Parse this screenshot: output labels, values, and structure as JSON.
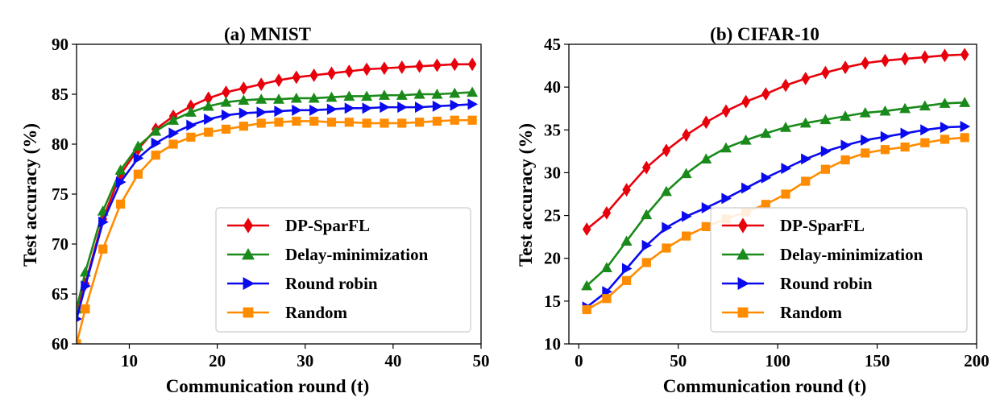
{
  "chart_data": [
    {
      "type": "line",
      "id": "mnist",
      "title": "(a) MNIST",
      "xlabel": "Communication round (t)",
      "ylabel": "Test accuracy (%)",
      "xlim": [
        4,
        50
      ],
      "ylim": [
        60,
        90
      ],
      "xticks": [
        10,
        20,
        30,
        40,
        50
      ],
      "yticks": [
        60,
        65,
        70,
        75,
        80,
        85,
        90
      ],
      "grid": false,
      "legend_position": "lower-right",
      "series": [
        {
          "name": "DP-SparFL",
          "color": "#e8000b",
          "marker": "diamond",
          "x": [
            4,
            5,
            7,
            9,
            11,
            13,
            15,
            17,
            19,
            21,
            23,
            25,
            27,
            29,
            31,
            33,
            35,
            37,
            39,
            41,
            43,
            45,
            47,
            49
          ],
          "y": [
            63.5,
            66.0,
            72.5,
            77.0,
            79.5,
            81.5,
            82.8,
            83.8,
            84.6,
            85.2,
            85.6,
            86.0,
            86.4,
            86.7,
            86.9,
            87.1,
            87.3,
            87.5,
            87.6,
            87.7,
            87.8,
            87.9,
            88.0,
            88.0
          ]
        },
        {
          "name": "Delay-minimization",
          "color": "#1a8a1a",
          "marker": "triangle-up",
          "x": [
            4,
            5,
            7,
            9,
            11,
            13,
            15,
            17,
            19,
            21,
            23,
            25,
            27,
            29,
            31,
            33,
            35,
            37,
            39,
            41,
            43,
            45,
            47,
            49
          ],
          "y": [
            63.5,
            67.2,
            73.3,
            77.4,
            79.8,
            81.3,
            82.4,
            83.2,
            83.8,
            84.2,
            84.4,
            84.5,
            84.5,
            84.6,
            84.6,
            84.7,
            84.8,
            84.8,
            84.9,
            84.9,
            85.0,
            85.0,
            85.1,
            85.2
          ]
        },
        {
          "name": "Round robin",
          "color": "#0a0aee",
          "marker": "triangle-right",
          "x": [
            4,
            5,
            7,
            9,
            11,
            13,
            15,
            17,
            19,
            21,
            23,
            25,
            27,
            29,
            31,
            33,
            35,
            37,
            39,
            41,
            43,
            45,
            47,
            49
          ],
          "y": [
            62.5,
            65.8,
            72.2,
            76.2,
            78.6,
            80.1,
            81.1,
            81.9,
            82.5,
            82.9,
            83.1,
            83.2,
            83.3,
            83.4,
            83.4,
            83.5,
            83.6,
            83.6,
            83.7,
            83.7,
            83.7,
            83.8,
            83.9,
            84.0
          ]
        },
        {
          "name": "Random",
          "color": "#ff8c00",
          "marker": "square",
          "x": [
            4,
            5,
            7,
            9,
            11,
            13,
            15,
            17,
            19,
            21,
            23,
            25,
            27,
            29,
            31,
            33,
            35,
            37,
            39,
            41,
            43,
            45,
            47,
            49
          ],
          "y": [
            60.0,
            63.5,
            69.5,
            74.0,
            77.0,
            78.9,
            80.0,
            80.7,
            81.2,
            81.5,
            81.8,
            82.1,
            82.2,
            82.3,
            82.3,
            82.2,
            82.2,
            82.1,
            82.1,
            82.1,
            82.2,
            82.3,
            82.4,
            82.4
          ]
        }
      ]
    },
    {
      "type": "line",
      "id": "cifar",
      "title": "(b) CIFAR-10",
      "xlabel": "Communication round (t)",
      "ylabel": "Test accuracy (%)",
      "xlim": [
        -5,
        200
      ],
      "ylim": [
        10,
        45
      ],
      "xticks": [
        0,
        50,
        100,
        150,
        200
      ],
      "yticks": [
        10,
        15,
        20,
        25,
        30,
        35,
        40,
        45
      ],
      "grid": false,
      "legend_position": "lower-right",
      "series": [
        {
          "name": "DP-SparFL",
          "color": "#e8000b",
          "marker": "diamond",
          "x": [
            4,
            14,
            24,
            34,
            44,
            54,
            64,
            74,
            84,
            94,
            104,
            114,
            124,
            134,
            144,
            154,
            164,
            174,
            184,
            194
          ],
          "y": [
            23.4,
            25.3,
            28.0,
            30.6,
            32.6,
            34.4,
            35.9,
            37.2,
            38.3,
            39.2,
            40.2,
            41.0,
            41.7,
            42.3,
            42.8,
            43.1,
            43.3,
            43.5,
            43.7,
            43.8
          ]
        },
        {
          "name": "Delay-minimization",
          "color": "#1a8a1a",
          "marker": "triangle-up",
          "x": [
            4,
            14,
            24,
            34,
            44,
            54,
            64,
            74,
            84,
            94,
            104,
            114,
            124,
            134,
            144,
            154,
            164,
            174,
            184,
            194
          ],
          "y": [
            16.8,
            18.9,
            22.0,
            25.1,
            27.8,
            29.9,
            31.6,
            32.9,
            33.8,
            34.6,
            35.3,
            35.8,
            36.2,
            36.6,
            37.0,
            37.2,
            37.5,
            37.8,
            38.1,
            38.2
          ]
        },
        {
          "name": "Round robin",
          "color": "#0a0aee",
          "marker": "triangle-right",
          "x": [
            4,
            14,
            24,
            34,
            44,
            54,
            64,
            74,
            84,
            94,
            104,
            114,
            124,
            134,
            144,
            154,
            164,
            174,
            184,
            194
          ],
          "y": [
            14.3,
            16.1,
            18.8,
            21.5,
            23.6,
            24.9,
            25.9,
            27.0,
            28.2,
            29.4,
            30.5,
            31.6,
            32.5,
            33.2,
            33.8,
            34.2,
            34.6,
            35.0,
            35.3,
            35.4
          ]
        },
        {
          "name": "Random",
          "color": "#ff8c00",
          "marker": "square",
          "x": [
            4,
            14,
            24,
            34,
            44,
            54,
            64,
            74,
            84,
            94,
            104,
            114,
            124,
            134,
            144,
            154,
            164,
            174,
            184,
            194
          ],
          "y": [
            14.0,
            15.3,
            17.4,
            19.5,
            21.2,
            22.6,
            23.7,
            24.6,
            25.4,
            26.3,
            27.5,
            29.0,
            30.4,
            31.5,
            32.3,
            32.7,
            33.0,
            33.5,
            33.9,
            34.1
          ]
        }
      ]
    }
  ]
}
